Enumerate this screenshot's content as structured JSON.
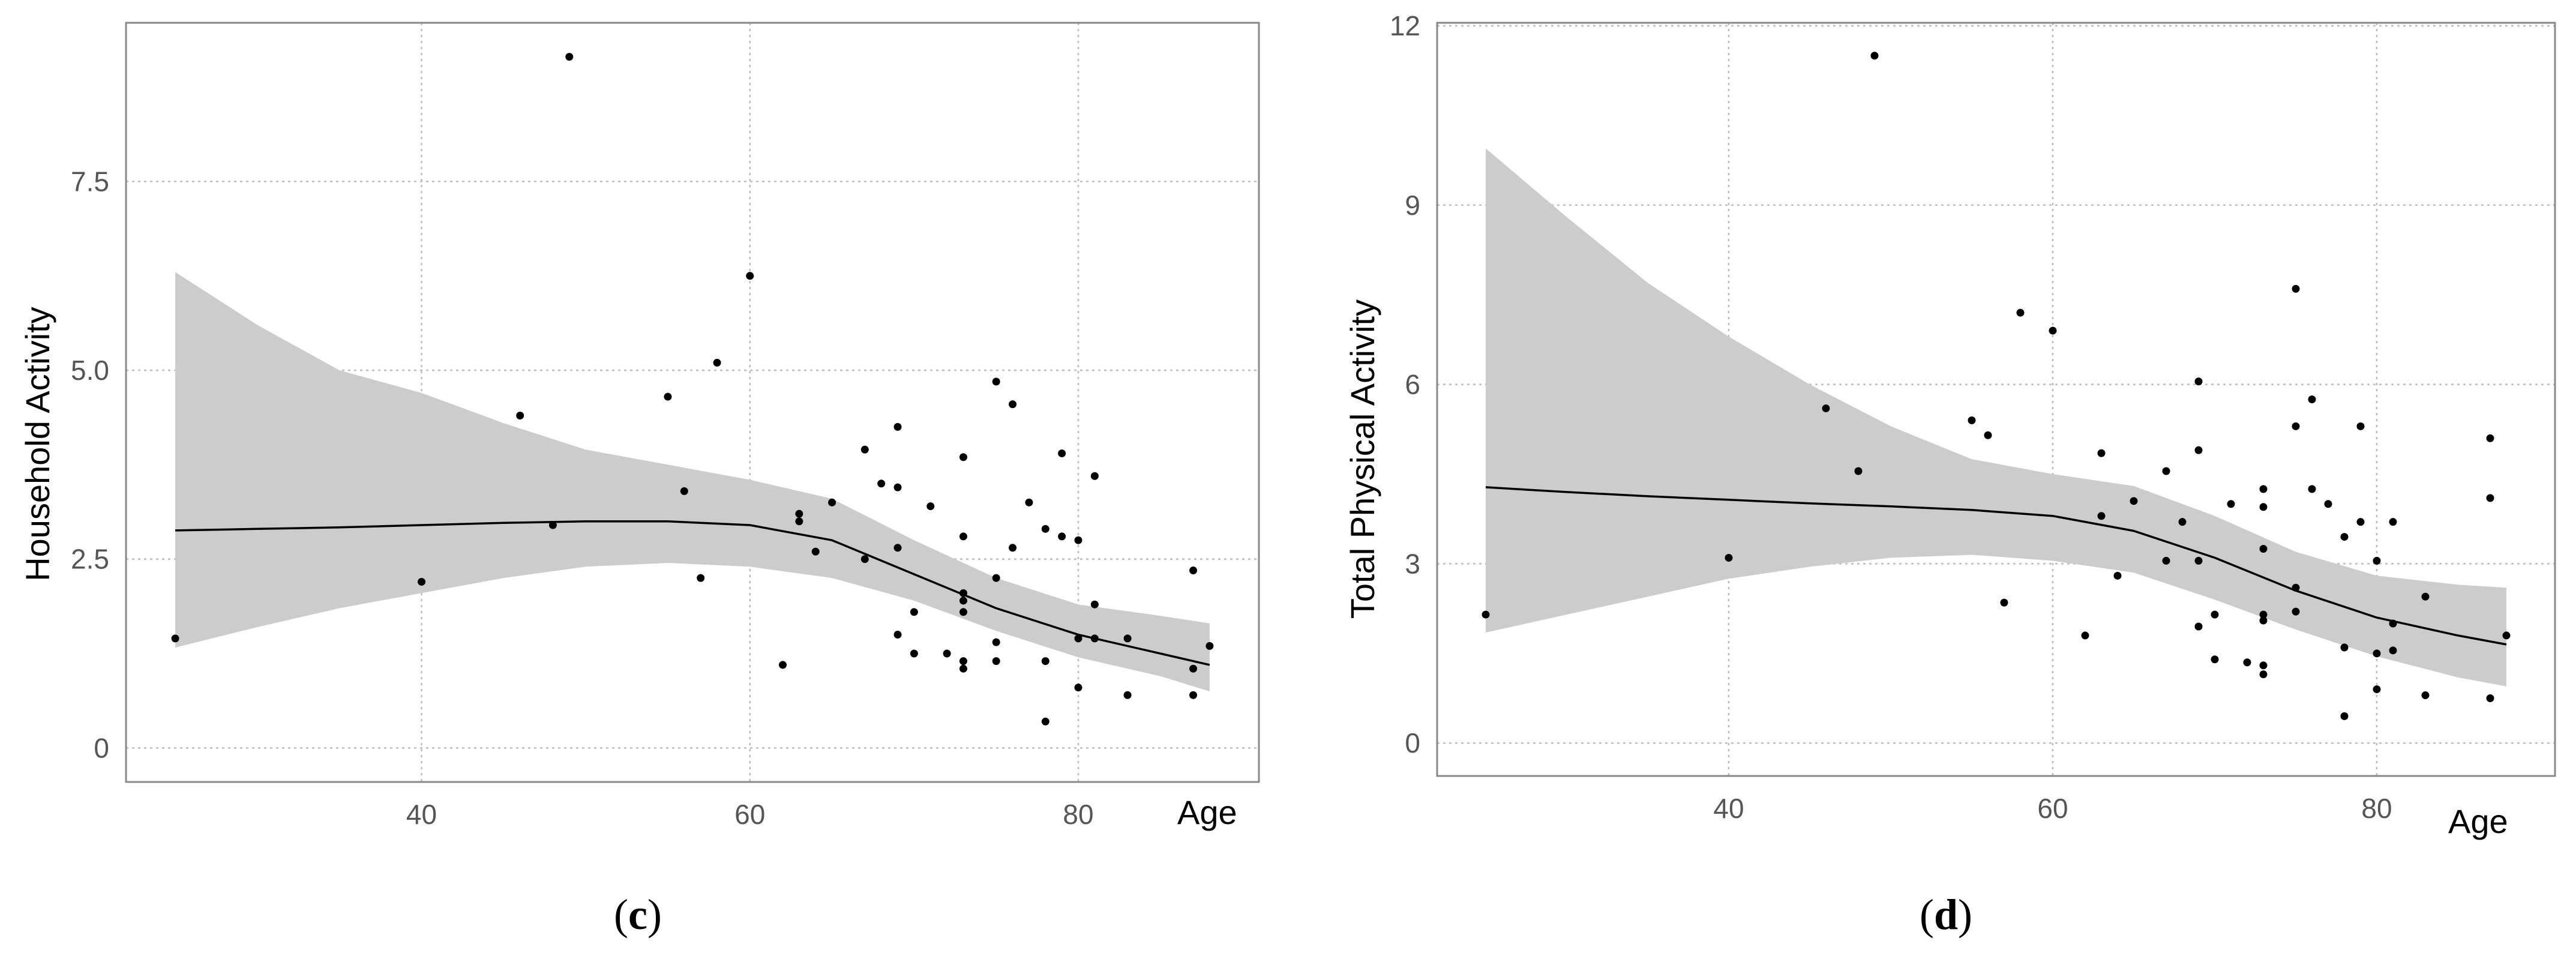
{
  "chart_data": [
    {
      "type": "scatter",
      "panel": "(c)",
      "panel_letter": "c",
      "title": "",
      "xlabel": "Age",
      "ylabel": "Household Activity",
      "xlim": [
        22,
        91
      ],
      "ylim": [
        -0.45,
        9.6
      ],
      "x_ticks": [
        40,
        60,
        80
      ],
      "x_tick_labels": [
        "40",
        "60",
        "80"
      ],
      "y_ticks": [
        0,
        2.5,
        5.0,
        7.5
      ],
      "y_tick_labels": [
        "0",
        "2.5",
        "5.0",
        "7.5"
      ],
      "grid": true,
      "colors": {
        "points": "#000000",
        "line": "#000000",
        "band": "#cccccc",
        "grid": "#bdbdbd",
        "frame": "#888888"
      },
      "points": [
        [
          25,
          1.45
        ],
        [
          40,
          2.2
        ],
        [
          46,
          4.4
        ],
        [
          48,
          2.95
        ],
        [
          49,
          9.15
        ],
        [
          55,
          4.65
        ],
        [
          56,
          3.4
        ],
        [
          57,
          2.25
        ],
        [
          58,
          5.1
        ],
        [
          60,
          6.25
        ],
        [
          62,
          1.1
        ],
        [
          63,
          3.1
        ],
        [
          63,
          3.0
        ],
        [
          64,
          2.6
        ],
        [
          65,
          3.25
        ],
        [
          67,
          3.95
        ],
        [
          67,
          2.5
        ],
        [
          68,
          3.5
        ],
        [
          69,
          4.25
        ],
        [
          69,
          3.45
        ],
        [
          69,
          2.65
        ],
        [
          69,
          1.5
        ],
        [
          70,
          1.8
        ],
        [
          70,
          1.25
        ],
        [
          71,
          3.2
        ],
        [
          72,
          1.25
        ],
        [
          73,
          3.85
        ],
        [
          73,
          2.8
        ],
        [
          73,
          2.05
        ],
        [
          73,
          1.95
        ],
        [
          73,
          1.8
        ],
        [
          73,
          1.15
        ],
        [
          73,
          1.05
        ],
        [
          75,
          4.85
        ],
        [
          75,
          2.25
        ],
        [
          75,
          1.4
        ],
        [
          75,
          1.15
        ],
        [
          76,
          4.55
        ],
        [
          76,
          2.65
        ],
        [
          77,
          3.25
        ],
        [
          78,
          2.9
        ],
        [
          78,
          1.15
        ],
        [
          78,
          0.35
        ],
        [
          79,
          3.9
        ],
        [
          79,
          2.8
        ],
        [
          80,
          2.75
        ],
        [
          80,
          1.45
        ],
        [
          80,
          0.8
        ],
        [
          81,
          3.6
        ],
        [
          81,
          1.9
        ],
        [
          81,
          1.45
        ],
        [
          83,
          1.45
        ],
        [
          83,
          0.7
        ],
        [
          87,
          2.35
        ],
        [
          87,
          1.05
        ],
        [
          87,
          0.7
        ],
        [
          88,
          1.35
        ]
      ],
      "fit": {
        "x": [
          25,
          30,
          35,
          40,
          45,
          50,
          55,
          60,
          65,
          70,
          75,
          80,
          85,
          88
        ],
        "y": [
          2.88,
          2.9,
          2.92,
          2.95,
          2.98,
          3.0,
          3.0,
          2.95,
          2.75,
          2.3,
          1.85,
          1.5,
          1.25,
          1.1
        ]
      },
      "band": {
        "lower": [
          1.33,
          1.6,
          1.85,
          2.05,
          2.25,
          2.4,
          2.45,
          2.4,
          2.25,
          1.95,
          1.55,
          1.2,
          0.95,
          0.75
        ],
        "upper": [
          6.3,
          5.6,
          5.0,
          4.7,
          4.3,
          3.95,
          3.75,
          3.55,
          3.3,
          2.75,
          2.25,
          1.9,
          1.75,
          1.65
        ]
      }
    },
    {
      "type": "scatter",
      "panel": "(d)",
      "panel_letter": "d",
      "title": "",
      "xlabel": "Age",
      "ylabel": "Total Physical Activity",
      "xlim": [
        22,
        91
      ],
      "ylim": [
        -0.55,
        12.05
      ],
      "x_ticks": [
        40,
        60,
        80
      ],
      "x_tick_labels": [
        "40",
        "60",
        "80"
      ],
      "y_ticks": [
        0,
        3,
        6,
        9,
        12
      ],
      "y_tick_labels": [
        "0",
        "3",
        "6",
        "9",
        "12"
      ],
      "grid": true,
      "colors": {
        "points": "#000000",
        "line": "#000000",
        "band": "#cccccc",
        "grid": "#bdbdbd",
        "frame": "#888888"
      },
      "points": [
        [
          25,
          2.15
        ],
        [
          40,
          3.1
        ],
        [
          46,
          5.6
        ],
        [
          48,
          4.55
        ],
        [
          49,
          11.5
        ],
        [
          55,
          5.4
        ],
        [
          56,
          5.15
        ],
        [
          57,
          2.35
        ],
        [
          58,
          7.2
        ],
        [
          60,
          6.9
        ],
        [
          62,
          1.8
        ],
        [
          63,
          4.85
        ],
        [
          63,
          3.8
        ],
        [
          64,
          2.8
        ],
        [
          65,
          4.05
        ],
        [
          67,
          4.55
        ],
        [
          67,
          3.05
        ],
        [
          68,
          3.7
        ],
        [
          69,
          6.05
        ],
        [
          69,
          4.9
        ],
        [
          69,
          3.05
        ],
        [
          69,
          1.95
        ],
        [
          70,
          2.15
        ],
        [
          70,
          1.4
        ],
        [
          71,
          4.0
        ],
        [
          72,
          1.35
        ],
        [
          73,
          4.25
        ],
        [
          73,
          3.95
        ],
        [
          73,
          3.25
        ],
        [
          73,
          2.15
        ],
        [
          73,
          2.05
        ],
        [
          73,
          1.3
        ],
        [
          73,
          1.15
        ],
        [
          75,
          7.6
        ],
        [
          75,
          5.3
        ],
        [
          75,
          2.6
        ],
        [
          75,
          2.2
        ],
        [
          76,
          5.75
        ],
        [
          76,
          4.25
        ],
        [
          77,
          4.0
        ],
        [
          78,
          3.45
        ],
        [
          78,
          1.6
        ],
        [
          78,
          0.45
        ],
        [
          79,
          5.3
        ],
        [
          79,
          3.7
        ],
        [
          80,
          3.05
        ],
        [
          80,
          1.5
        ],
        [
          80,
          0.9
        ],
        [
          81,
          3.7
        ],
        [
          81,
          2.0
        ],
        [
          81,
          1.55
        ],
        [
          83,
          2.45
        ],
        [
          83,
          0.8
        ],
        [
          87,
          5.1
        ],
        [
          87,
          4.1
        ],
        [
          87,
          0.75
        ],
        [
          88,
          1.8
        ]
      ],
      "fit": {
        "x": [
          25,
          30,
          35,
          40,
          45,
          50,
          55,
          60,
          65,
          70,
          75,
          80,
          85,
          88
        ],
        "y": [
          4.28,
          4.2,
          4.13,
          4.07,
          4.01,
          3.96,
          3.9,
          3.8,
          3.55,
          3.1,
          2.55,
          2.1,
          1.8,
          1.65
        ]
      },
      "band": {
        "lower": [
          1.85,
          2.15,
          2.45,
          2.75,
          2.95,
          3.1,
          3.15,
          3.05,
          2.85,
          2.4,
          1.9,
          1.45,
          1.1,
          0.95
        ],
        "upper": [
          9.95,
          8.8,
          7.7,
          6.8,
          6.0,
          5.3,
          4.75,
          4.5,
          4.3,
          3.8,
          3.2,
          2.8,
          2.65,
          2.6
        ]
      }
    }
  ]
}
